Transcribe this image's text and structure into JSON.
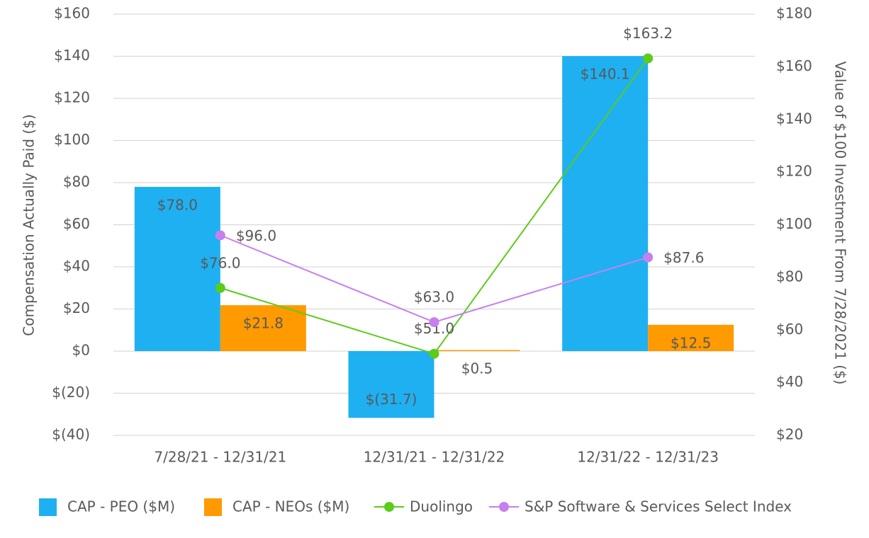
{
  "chart_data": {
    "type": "bar",
    "categories": [
      "7/28/21 - 12/31/21",
      "12/31/21 - 12/31/22",
      "12/31/22 - 12/31/23"
    ],
    "ylabel": "Compensation Actually Paid ($)",
    "y2label": "Value of $100 Investment From 7/28/2021 ($)",
    "ylim": [
      -40,
      160
    ],
    "yticks": [
      {
        "value": -40,
        "label": "$(40)"
      },
      {
        "value": -20,
        "label": "$(20)"
      },
      {
        "value": 0,
        "label": "$0"
      },
      {
        "value": 20,
        "label": "$20"
      },
      {
        "value": 40,
        "label": "$40"
      },
      {
        "value": 60,
        "label": "$60"
      },
      {
        "value": 80,
        "label": "$80"
      },
      {
        "value": 100,
        "label": "$100"
      },
      {
        "value": 120,
        "label": "$120"
      },
      {
        "value": 140,
        "label": "$140"
      },
      {
        "value": 160,
        "label": "$160"
      }
    ],
    "y2lim": [
      20,
      180
    ],
    "y2ticks": [
      {
        "value": 20,
        "label": "$20"
      },
      {
        "value": 40,
        "label": "$40"
      },
      {
        "value": 60,
        "label": "$60"
      },
      {
        "value": 80,
        "label": "$80"
      },
      {
        "value": 100,
        "label": "$100"
      },
      {
        "value": 120,
        "label": "$120"
      },
      {
        "value": 140,
        "label": "$140"
      },
      {
        "value": 160,
        "label": "$160"
      },
      {
        "value": 180,
        "label": "$180"
      }
    ],
    "grid": true,
    "legend": "bottom",
    "series": [
      {
        "name": "CAP - PEO ($M)",
        "type": "bar",
        "color": "#1fb0f2",
        "values": [
          78.0,
          -31.7,
          140.1
        ],
        "value_labels": [
          "$78.0",
          "$(31.7)",
          "$140.1"
        ]
      },
      {
        "name": "CAP - NEOs ($M)",
        "type": "bar",
        "color": "#ff9a00",
        "values": [
          21.8,
          0.5,
          12.5
        ],
        "value_labels": [
          "$21.8",
          "$0.5",
          "$12.5"
        ]
      },
      {
        "name": "Duolingo",
        "type": "line",
        "axis": "y2",
        "color": "#5ccb1a",
        "values": [
          76.0,
          51.0,
          163.2
        ],
        "value_labels": [
          "$76.0",
          "$51.0",
          "$163.2"
        ]
      },
      {
        "name": "S&P Software & Services Select Index",
        "type": "line",
        "axis": "y2",
        "color": "#c77ff0",
        "values": [
          96.0,
          63.0,
          87.6
        ],
        "value_labels": [
          "$96.0",
          "$63.0",
          "$87.6"
        ]
      }
    ]
  }
}
